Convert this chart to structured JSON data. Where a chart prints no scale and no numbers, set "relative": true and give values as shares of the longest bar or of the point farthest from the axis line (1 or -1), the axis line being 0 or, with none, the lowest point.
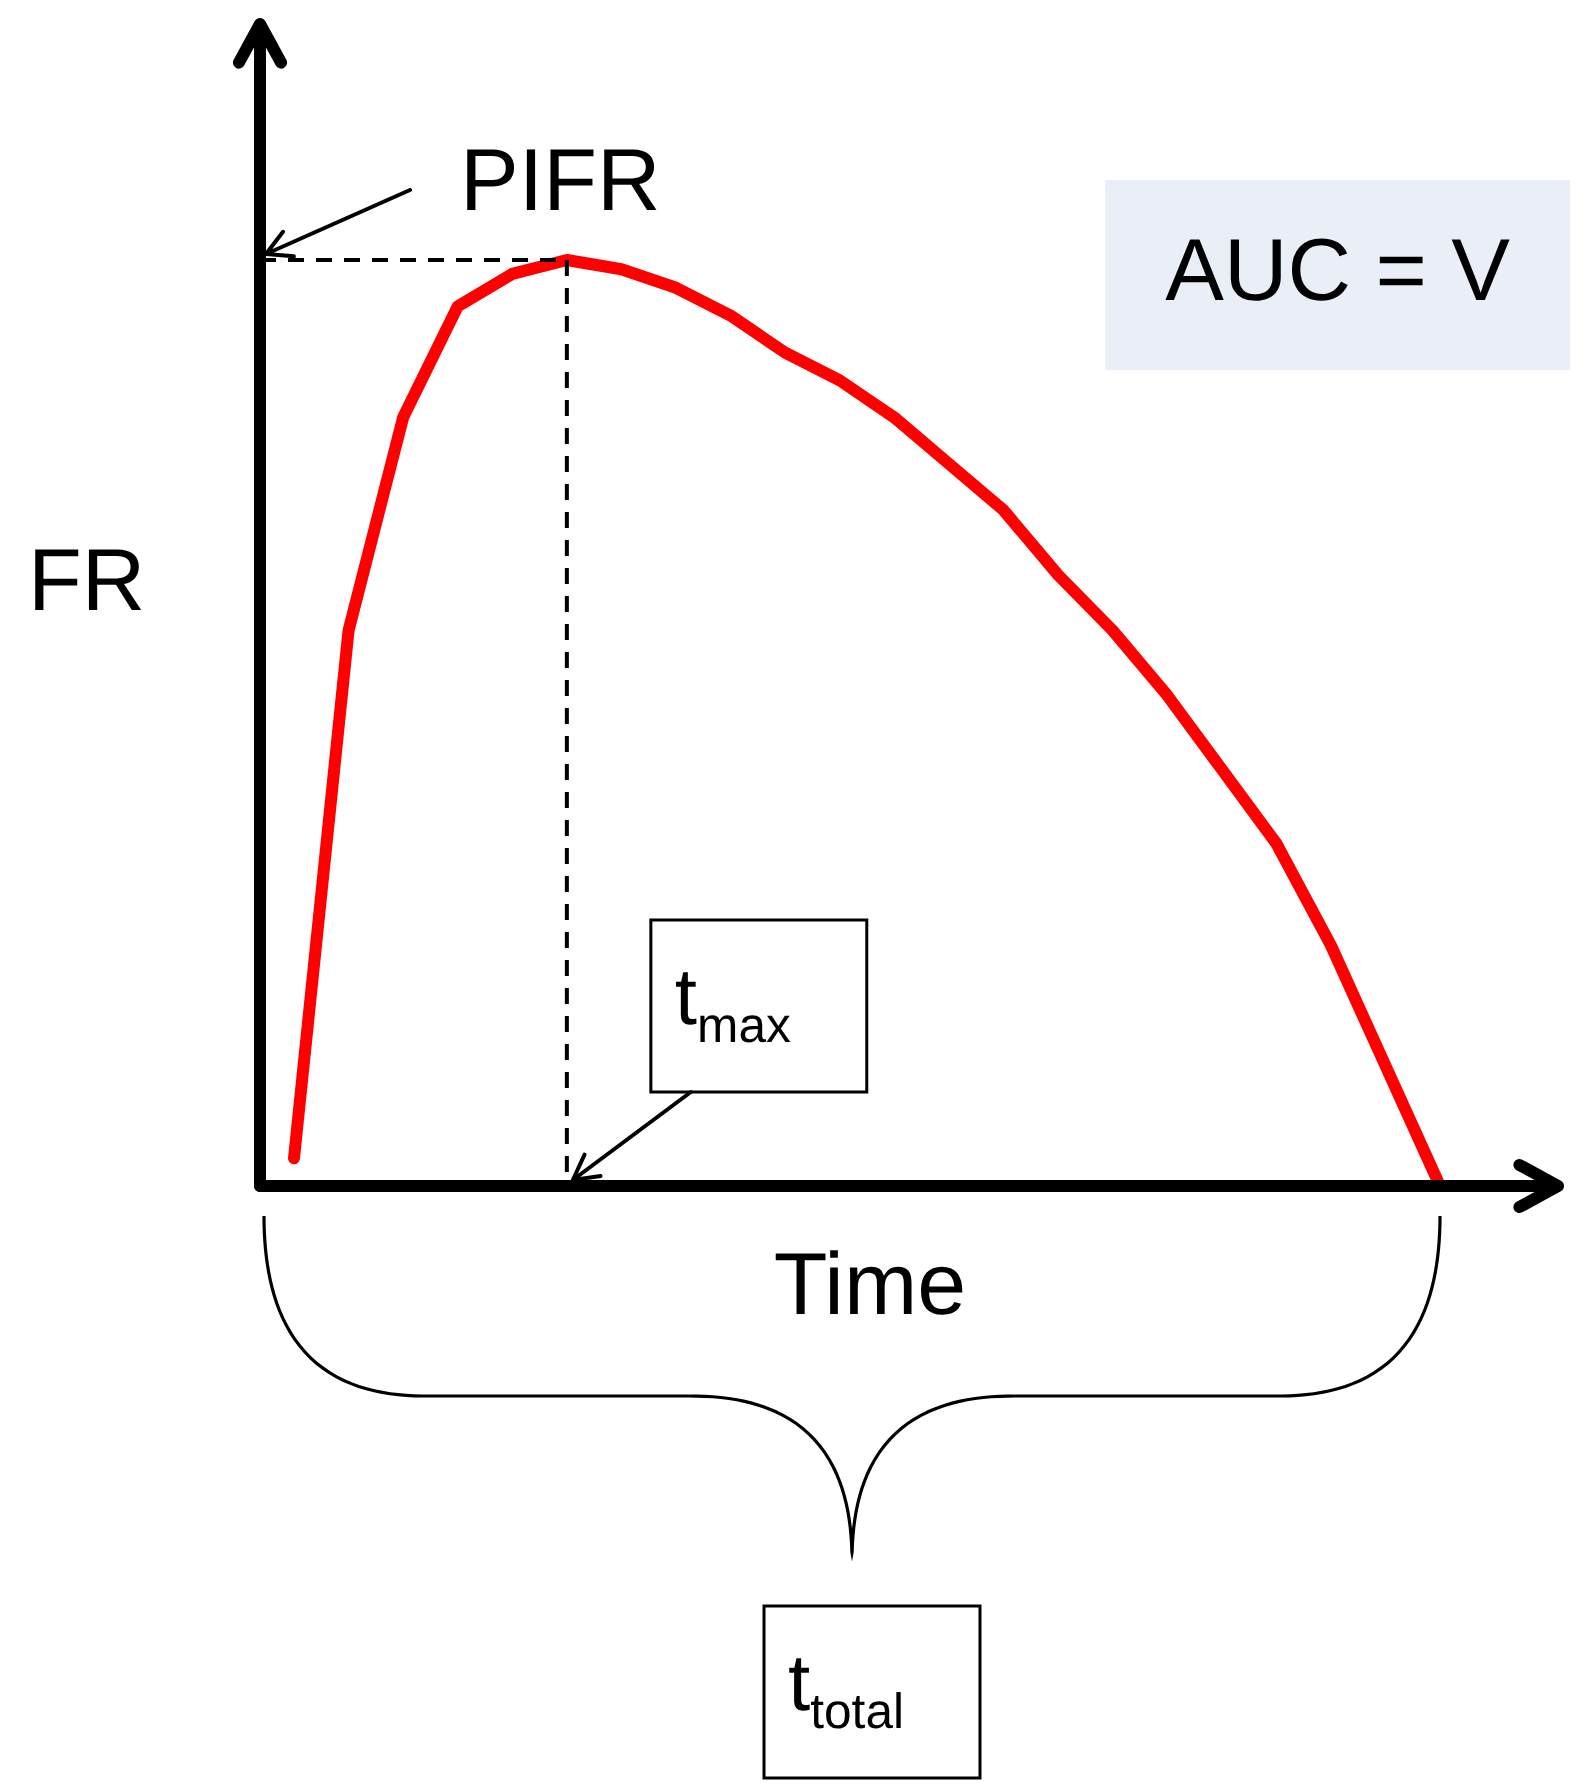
{
  "chart_data": {
    "type": "line",
    "relative": true,
    "xlabel": "Time",
    "ylabel": "FR",
    "legend": false,
    "marker": "none",
    "line_style": "solid",
    "categories": [
      null,
      null,
      null,
      null,
      null,
      null,
      null,
      null,
      null,
      null,
      null,
      null,
      null,
      null,
      null,
      null,
      null,
      null,
      null,
      null,
      null,
      null
    ],
    "series": [
      {
        "color": "#ff0000",
        "values": [
          0.03,
          0.6,
          0.83,
          0.95,
          0.985,
          1,
          0.99,
          0.97,
          0.94,
          0.9,
          0.87,
          0.83,
          0.78,
          0.73,
          0.66,
          0.6,
          0.53,
          0.45,
          0.37,
          0.26,
          0.13,
          0
        ]
      }
    ],
    "ref_lines": [
      {
        "axis": "y",
        "value": 1,
        "line_style": "dashed",
        "color": "#000000"
      }
    ],
    "annotations": [
      "PIFR",
      "t$_{max}$",
      "t$_{total}$",
      "AUC = V"
    ]
  }
}
